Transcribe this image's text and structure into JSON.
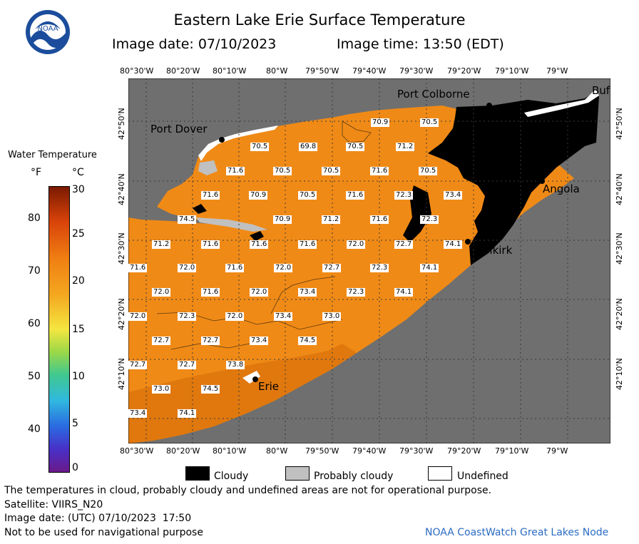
{
  "header": {
    "title": "Eastern Lake Erie Surface Temperature",
    "image_date": "Image date: 07/10/2023",
    "image_time": "Image time: 13:50 (EDT)",
    "logo_text": "NOAA"
  },
  "map": {
    "lon_labels": [
      "80°30'W",
      "80°20'W",
      "80°10'W",
      "80°W",
      "79°50'W",
      "79°40'W",
      "79°30'W",
      "79°20'W",
      "79°10'W",
      "79°W"
    ],
    "lat_labels": [
      "42°50'N",
      "42°40'N",
      "42°30'N",
      "42°20'N",
      "42°10'N"
    ],
    "places": {
      "port_colborne": "Port Colborne",
      "port_dover": "Port Dover",
      "angola": "Angola",
      "dunkirk": "Dunkirk",
      "erie": "Erie",
      "buffalo": "Buf"
    },
    "temperatures": [
      {
        "label": "70.9"
      },
      {
        "label": "70.5"
      },
      {
        "label": "70.5"
      },
      {
        "label": "69.8"
      },
      {
        "label": "70.5"
      },
      {
        "label": "71.2"
      },
      {
        "label": "71.6"
      },
      {
        "label": "70.5"
      },
      {
        "label": "70.5"
      },
      {
        "label": "71.6"
      },
      {
        "label": "70.5"
      },
      {
        "label": "71.6"
      },
      {
        "label": "70.9"
      },
      {
        "label": "70.5"
      },
      {
        "label": "71.6"
      },
      {
        "label": "72.3"
      },
      {
        "label": "73.4"
      },
      {
        "label": "74.5"
      },
      {
        "label": "70.9"
      },
      {
        "label": "71.2"
      },
      {
        "label": "71.6"
      },
      {
        "label": "72.3"
      },
      {
        "label": "71.2"
      },
      {
        "label": "71.6"
      },
      {
        "label": "71.6"
      },
      {
        "label": "71.6"
      },
      {
        "label": "72.0"
      },
      {
        "label": "72.7"
      },
      {
        "label": "74.1"
      },
      {
        "label": "71.6"
      },
      {
        "label": "72.0"
      },
      {
        "label": "71.6"
      },
      {
        "label": "72.0"
      },
      {
        "label": "72.7"
      },
      {
        "label": "72.3"
      },
      {
        "label": "74.1"
      },
      {
        "label": "72.0"
      },
      {
        "label": "71.6"
      },
      {
        "label": "72.0"
      },
      {
        "label": "73.4"
      },
      {
        "label": "72.3"
      },
      {
        "label": "74.1"
      },
      {
        "label": "72.0"
      },
      {
        "label": "72.3"
      },
      {
        "label": "72.0"
      },
      {
        "label": "73.4"
      },
      {
        "label": "73.0"
      },
      {
        "label": "72.7"
      },
      {
        "label": "72.7"
      },
      {
        "label": "73.4"
      },
      {
        "label": "74.5"
      },
      {
        "label": "72.7"
      },
      {
        "label": "72.7"
      },
      {
        "label": "73.8"
      },
      {
        "label": "73.0"
      },
      {
        "label": "74.5"
      },
      {
        "label": "73.4"
      },
      {
        "label": "74.1"
      }
    ]
  },
  "legend": {
    "title": "Water Temperature",
    "unit_f": "°F",
    "unit_c": "°C",
    "f_ticks": [
      "80",
      "70",
      "60",
      "50",
      "40"
    ],
    "c_ticks": [
      "30",
      "25",
      "20",
      "15",
      "10",
      "5",
      "0"
    ]
  },
  "key": {
    "cloudy": "Cloudy",
    "probably_cloudy": "Probably cloudy",
    "undefined": "Undefined",
    "cloudy_color": "#000000",
    "probably_cloudy_color": "#c0c0c0",
    "undefined_color": "#ffffff"
  },
  "footer": {
    "disclaimer": "The temperatures in cloud, probably cloudy and undefined areas are not for operational purpose.",
    "satellite": "Satellite: VIIRS_N20",
    "utc_date": "Image date: (UTC) 07/10/2023  17:50",
    "nav_warning": "Not to be used for navigational purpose",
    "credit": "NOAA CoastWatch Great Lakes Node"
  },
  "colors": {
    "water_orange": "#f08a16",
    "land_gray": "#6f6f6f",
    "credit_blue": "#2b6cc4"
  }
}
